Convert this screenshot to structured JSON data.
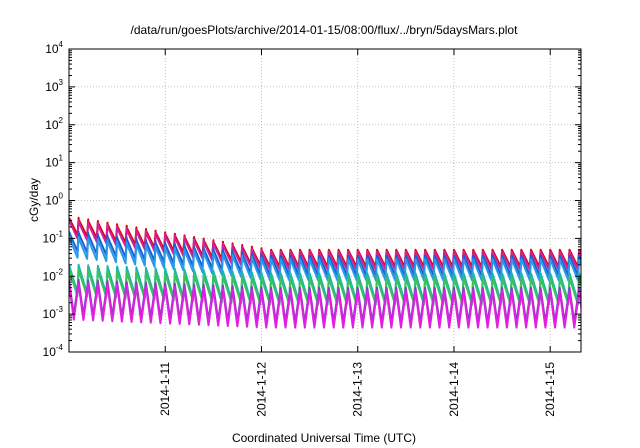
{
  "chart_data": {
    "type": "line",
    "title": "/data/run/goesPlots/archive/2014-01-15/08:00/flux/../bryn/5daysMars.plot",
    "xlabel": "Coordinated Universal Time (UTC)",
    "ylabel": "cGy/day",
    "y_scale": "log",
    "ylim": [
      0.0001,
      10000
    ],
    "y_ticks": [
      {
        "base": "10",
        "exp": "-4"
      },
      {
        "base": "10",
        "exp": "-3"
      },
      {
        "base": "10",
        "exp": "-2"
      },
      {
        "base": "10",
        "exp": "-1"
      },
      {
        "base": "10",
        "exp": "0"
      },
      {
        "base": "10",
        "exp": "1"
      },
      {
        "base": "10",
        "exp": "2"
      },
      {
        "base": "10",
        "exp": "3"
      },
      {
        "base": "10",
        "exp": "4"
      }
    ],
    "x_range_days": [
      0,
      5.32
    ],
    "x_ticks": [
      {
        "label": "2014-1-11",
        "day": 1
      },
      {
        "label": "2014-1-12",
        "day": 2
      },
      {
        "label": "2014-1-13",
        "day": 3
      },
      {
        "label": "2014-1-14",
        "day": 4
      },
      {
        "label": "2014-1-15",
        "day": 5
      }
    ],
    "grid": true,
    "cycles_per_day": 10,
    "series": [
      {
        "color": "#e00000",
        "peak_start": 0.35,
        "peak_end": 0.05,
        "trough_ratio": 0.35,
        "shape": "sawtooth"
      },
      {
        "color": "#d0209a",
        "peak_start": 0.3,
        "peak_end": 0.045,
        "trough_ratio": 0.33,
        "shape": "sawtooth"
      },
      {
        "color": "#1e5fd0",
        "peak_start": 0.15,
        "peak_end": 0.035,
        "trough_ratio": 0.3,
        "shape": "sawtooth"
      },
      {
        "color": "#2a9ae8",
        "peak_start": 0.11,
        "peak_end": 0.028,
        "trough_ratio": 0.28,
        "shape": "sawtooth"
      },
      {
        "color": "#18b8a8",
        "peak_start": 0.02,
        "peak_end": 0.012,
        "trough_ratio": 0.18,
        "shape": "sawtooth"
      },
      {
        "color": "#3cc060",
        "peak_start": 0.015,
        "peak_end": 0.009,
        "trough_ratio": 0.2,
        "shape": "sawtooth"
      },
      {
        "color": "#8040c0",
        "peak_start": 0.008,
        "peak_end": 0.005,
        "trough_ratio": 0.12,
        "shape": "spike"
      },
      {
        "color": "#e020e0",
        "peak_start": 0.0065,
        "peak_end": 0.004,
        "trough_ratio": 0.11,
        "shape": "spike"
      }
    ]
  }
}
